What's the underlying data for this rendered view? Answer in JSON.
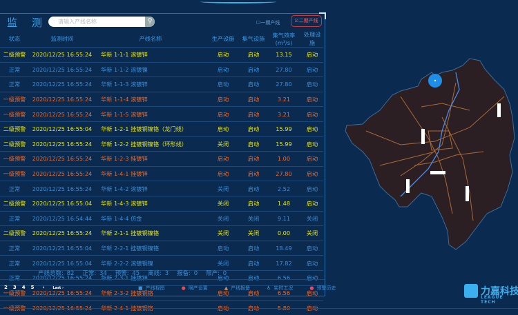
{
  "header": {
    "title": "监 测",
    "search_placeholder": "请输入产线名称",
    "phase1": "一期产线",
    "phase2": "二期产线"
  },
  "columns": [
    "状态",
    "监测时间",
    "产线名称",
    "生产设施",
    "集气设施",
    "集气效率(m³/s)",
    "处理设施"
  ],
  "rows": [
    {
      "level": "y",
      "status": "二级预警",
      "time": "2020/12/25 16:55:24",
      "name": "华新 1-1-1 滚镀锌",
      "prod": "启动",
      "gas": "启动",
      "eff": "13.15",
      "treat": "启动"
    },
    {
      "level": "n",
      "status": "正常",
      "time": "2020/12/25 16:55:24",
      "name": "华新 1-1-2 滚镀镍",
      "prod": "启动",
      "gas": "启动",
      "eff": "27.80",
      "treat": "启动"
    },
    {
      "level": "n",
      "status": "正常",
      "time": "2020/12/25 16:55:24",
      "name": "华新 1-1-3 滚镀锌",
      "prod": "启动",
      "gas": "启动",
      "eff": "27.80",
      "treat": "启动"
    },
    {
      "level": "o",
      "status": "一级预警",
      "time": "2020/12/25 16:55:24",
      "name": "华新 1-1-4 滚镀锌",
      "prod": "启动",
      "gas": "启动",
      "eff": "3.21",
      "treat": "启动"
    },
    {
      "level": "o",
      "status": "一级预警",
      "time": "2020/12/25 16:55:24",
      "name": "华新 1-1-5 滚镀锌",
      "prod": "启动",
      "gas": "启动",
      "eff": "3.21",
      "treat": "启动"
    },
    {
      "level": "y",
      "status": "二级预警",
      "time": "2020/12/25 16:55:04",
      "name": "华新 1-2-1 挂镀铜镍铬（龙门线）",
      "prod": "启动",
      "gas": "启动",
      "eff": "15.99",
      "treat": "启动"
    },
    {
      "level": "y",
      "status": "二级预警",
      "time": "2020/12/25 16:55:24",
      "name": "华新 1-2-2 挂镀铜镍铬（环形线）",
      "prod": "关闭",
      "gas": "启动",
      "eff": "15.99",
      "treat": "启动"
    },
    {
      "level": "o",
      "status": "一级预警",
      "time": "2020/12/25 16:55:24",
      "name": "华新 1-2-3 挂镀锌",
      "prod": "启动",
      "gas": "启动",
      "eff": "1.00",
      "treat": "启动"
    },
    {
      "level": "o",
      "status": "一级预警",
      "time": "2020/12/25 16:55:24",
      "name": "华新 1-4-1 挂镀锌",
      "prod": "启动",
      "gas": "启动",
      "eff": "27.80",
      "treat": "启动"
    },
    {
      "level": "n",
      "status": "正常",
      "time": "2020/12/25 16:55:24",
      "name": "华新 1-4-2 滚镀锌",
      "prod": "关闭",
      "gas": "启动",
      "eff": "2.52",
      "treat": "启动"
    },
    {
      "level": "y",
      "status": "二级预警",
      "time": "2020/12/25 16:55:04",
      "name": "华新 1-4-3 滚镀锌",
      "prod": "关闭",
      "gas": "启动",
      "eff": "1.48",
      "treat": "启动"
    },
    {
      "level": "n",
      "status": "正常",
      "time": "2020/12/25 16:54:44",
      "name": "华新 1-4-4 仿金",
      "prod": "关闭",
      "gas": "关闭",
      "eff": "9.11",
      "treat": "关闭"
    },
    {
      "level": "y",
      "status": "二级预警",
      "time": "2020/12/25 16:55:24",
      "name": "华新 2-1-1 挂镀铜镍铬",
      "prod": "关闭",
      "gas": "关闭",
      "eff": "0.00",
      "treat": "关闭"
    },
    {
      "level": "n",
      "status": "正常",
      "time": "2020/12/25 16:55:04",
      "name": "华新 2-2-1 挂镀铜镍铬",
      "prod": "启动",
      "gas": "启动",
      "eff": "18.49",
      "treat": "启动"
    },
    {
      "level": "n",
      "status": "正常",
      "time": "2020/12/25 16:55:04",
      "name": "华新 2-2-2 滚镀铜镍",
      "prod": "关闭",
      "gas": "启动",
      "eff": "17.82",
      "treat": "启动"
    },
    {
      "level": "n",
      "status": "正常",
      "time": "2020/12/25 16:55:24",
      "name": "华新 2-3-1 挂镀锌",
      "prod": "启动",
      "gas": "启动",
      "eff": "6.56",
      "treat": "启动"
    },
    {
      "level": "o",
      "status": "一级预警",
      "time": "2020/12/25 16:55:24",
      "name": "华新 2-3-2 挂镀铜铬",
      "prod": "启动",
      "gas": "启动",
      "eff": "6.56",
      "treat": "启动"
    },
    {
      "level": "o",
      "status": "一级预警",
      "time": "2020/12/25 16:55:24",
      "name": "华新 2-4-1 挂镀铜铬",
      "prod": "启动",
      "gas": "启动",
      "eff": "5.80",
      "treat": "启动"
    }
  ],
  "summary": {
    "total": "产线总数: 82",
    "normal": "正常: 34",
    "warning": "预警: 45",
    "offline": "离线: 3",
    "report": "报备: 0",
    "stopped": "限产: 0"
  },
  "pager": [
    "2",
    "3",
    "4",
    "5",
    "›",
    "Last ›"
  ],
  "legend": [
    {
      "icon": "square-icon",
      "color": "#3a8fd8",
      "label": "产线视图"
    },
    {
      "icon": "circle-icon",
      "color": "#e84a4a",
      "label": "限产设置"
    },
    {
      "icon": "triangle-icon",
      "color": "#c0906a",
      "label": "产线报备"
    },
    {
      "icon": "worker-icon",
      "color": "#3ab0f0",
      "label": "实时工况"
    },
    {
      "icon": "alarm-icon",
      "color": "#e84a6a",
      "label": "预警历史"
    }
  ],
  "logo": {
    "cn": "力嘉科技",
    "en": "LEAGUE TECH"
  },
  "colors": {
    "warning2": "#e8e61a",
    "warning1": "#f06a28",
    "normal": "#3a8fd8",
    "background": "#0a2a50"
  }
}
